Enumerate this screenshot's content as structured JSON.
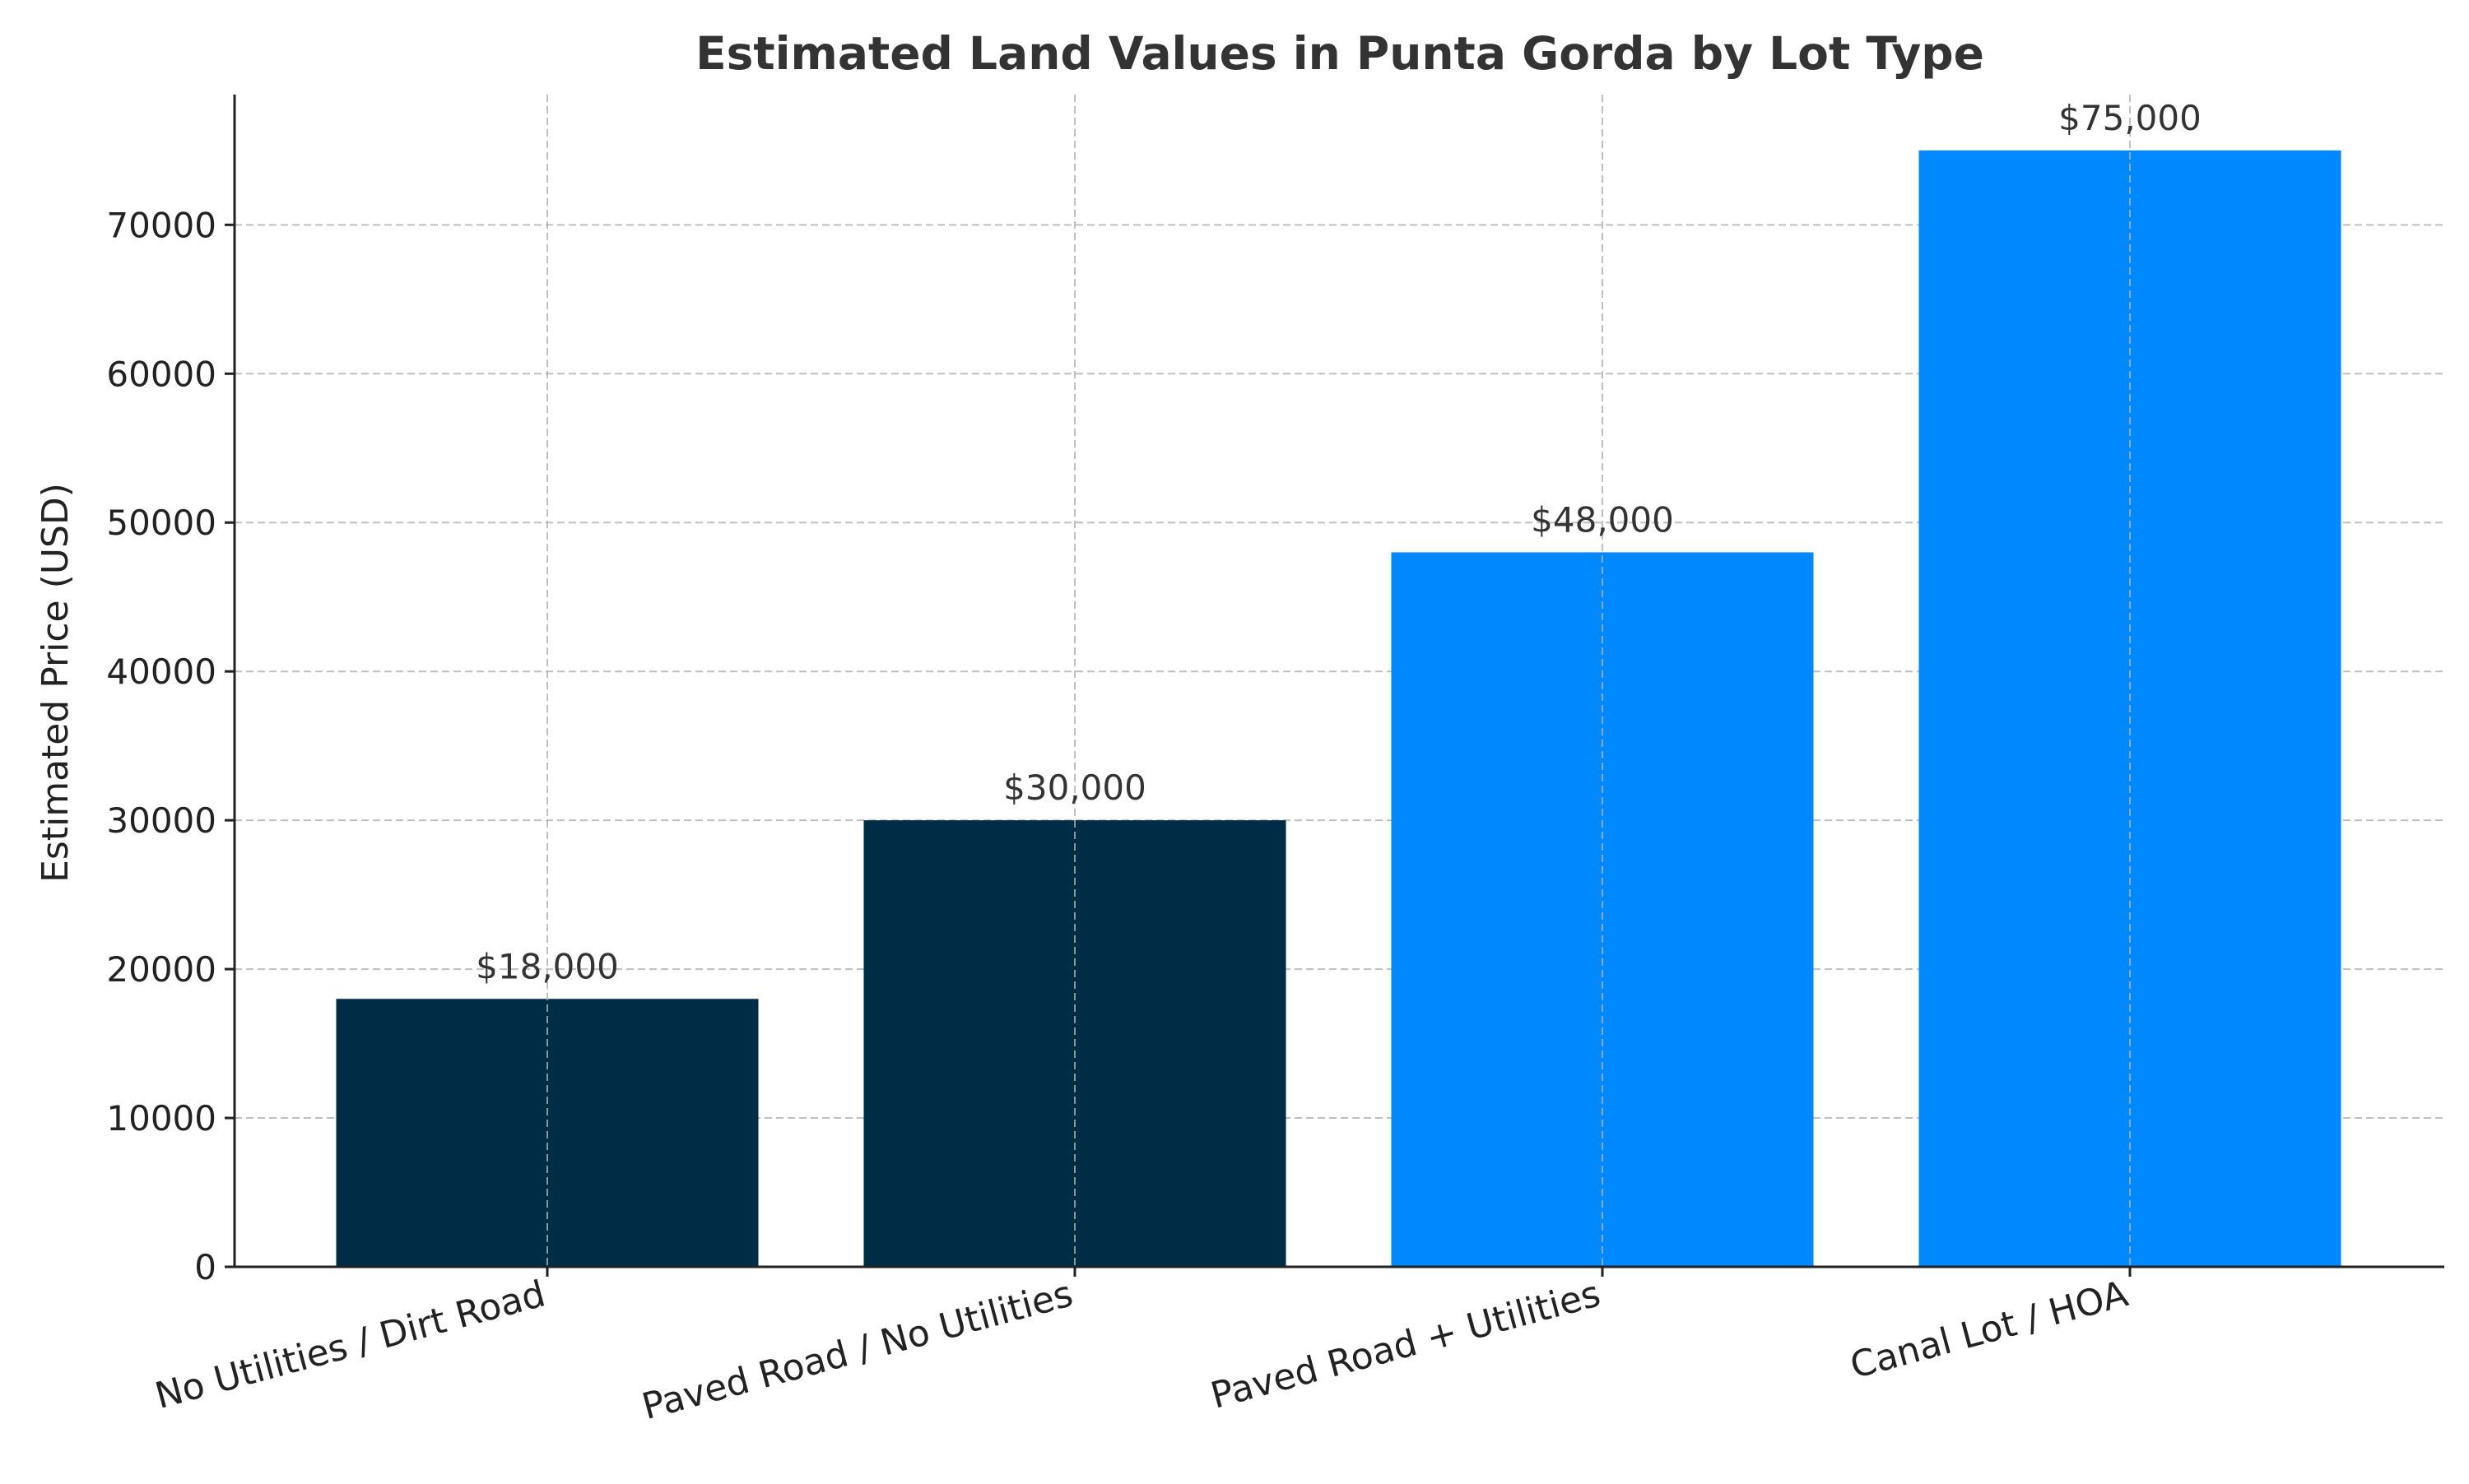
{
  "chart_data": {
    "type": "bar",
    "title": "Estimated Land Values in Punta Gorda by Lot Type",
    "xlabel": "",
    "ylabel": "Estimated Price (USD)",
    "categories": [
      "No Utilities / Dirt Road",
      "Paved Road / No Utilities",
      "Paved Road + Utilities",
      "Canal Lot / HOA"
    ],
    "values": [
      18000,
      30000,
      48000,
      75000
    ],
    "value_labels": [
      "$18,000",
      "$30,000",
      "$48,000",
      "$75,000"
    ],
    "bar_colors": [
      "#002D46",
      "#002D46",
      "#0088FF",
      "#0088FF"
    ],
    "ylim": [
      0,
      78750
    ],
    "yticks": [
      0,
      10000,
      20000,
      30000,
      40000,
      50000,
      60000,
      70000
    ],
    "ytick_labels": [
      "0",
      "10000",
      "20000",
      "30000",
      "40000",
      "50000",
      "60000",
      "70000"
    ],
    "grid": true,
    "legend": "none"
  }
}
